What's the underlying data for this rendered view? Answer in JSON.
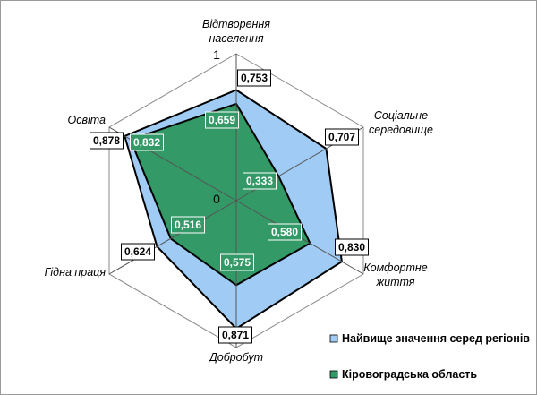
{
  "chart_data": {
    "type": "radar",
    "title": "",
    "categories": [
      [
        "Відтворення",
        "населення"
      ],
      [
        "Соціальне",
        "середовище"
      ],
      [
        "Комфортне",
        "життя"
      ],
      [
        "Добробут"
      ],
      [
        "Гідна праця"
      ],
      [
        "Освіта"
      ]
    ],
    "rlim": [
      0,
      1
    ],
    "tick_labels": {
      "min": "0",
      "max": "1"
    },
    "grid": true,
    "legend": "bottom-right",
    "series": [
      {
        "name": "Найвище значення серед регіонів",
        "values": [
          0.753,
          0.707,
          0.83,
          0.871,
          0.624,
          0.878
        ],
        "labels": [
          "0,753",
          "0,707",
          "0,830",
          "0,871",
          "0,624",
          "0,878"
        ],
        "color": "#9fcbf5"
      },
      {
        "name": "Кіровоградська область",
        "values": [
          0.659,
          0.333,
          0.58,
          0.575,
          0.516,
          0.832
        ],
        "labels": [
          "0,659",
          "0,333",
          "0,580",
          "0,575",
          "0,516",
          "0,832"
        ],
        "color": "#339966"
      }
    ]
  }
}
